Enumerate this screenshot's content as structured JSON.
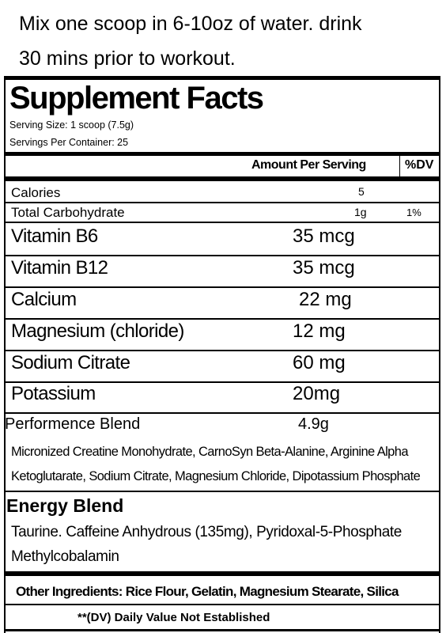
{
  "instructions": [
    "Mix one scoop in 6-10oz of water. drink",
    "30 mins prior to workout."
  ],
  "facts": {
    "title": "Supplement Facts",
    "serving_size": "Serving Size: 1 scoop (7.5g)",
    "servings_per_container": "Servings Per Container: 25",
    "header": {
      "amount": "Amount Per Serving",
      "dv": "%DV"
    },
    "small_rows": [
      {
        "name": "Calories",
        "amount": "5"
      },
      {
        "name": "Total Carbohydrate",
        "amount": "1g",
        "dv": "1%"
      }
    ],
    "rows": [
      {
        "name": "Vitamin B6",
        "amount": "35 mcg"
      },
      {
        "name": "Vitamin B12",
        "amount": "35 mcg"
      },
      {
        "name": "Calcium",
        "amount": "22 mg"
      },
      {
        "name": "Magnesium (chloride)",
        "amount": "12 mg"
      },
      {
        "name": "Sodium Citrate",
        "amount": "60 mg"
      },
      {
        "name": "Potassium",
        "amount": "20mg"
      }
    ],
    "performance_blend": {
      "name": "Performence Blend",
      "amount": "4.9g",
      "ingredients": [
        "Micronized Creatine Monohydrate, CarnoSyn Beta-Alanine, Arginine Alpha",
        "Ketoglutarate, Sodium Citrate, Magnesium Chloride, Dipotassium Phosphate"
      ]
    },
    "energy_blend": {
      "name": "Energy Blend",
      "ingredients": [
        "Taurine. Caffeine Anhydrous (135mg), Pyridoxal-5-Phosphate",
        "Methylcobalamin"
      ]
    },
    "other_ingredients": "Other Ingredients: Rice Flour, Gelatin, Magnesium Stearate, Silica",
    "footnote": "**(DV) Daily Value Not Established"
  }
}
